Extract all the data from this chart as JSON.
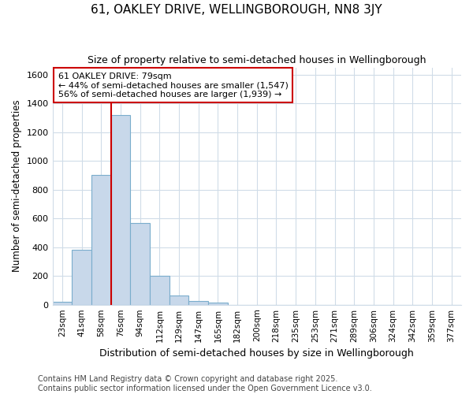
{
  "title": "61, OAKLEY DRIVE, WELLINGBOROUGH, NN8 3JY",
  "subtitle": "Size of property relative to semi-detached houses in Wellingborough",
  "xlabel": "Distribution of semi-detached houses by size in Wellingborough",
  "ylabel": "Number of semi-detached properties",
  "categories": [
    "23sqm",
    "41sqm",
    "58sqm",
    "76sqm",
    "94sqm",
    "112sqm",
    "129sqm",
    "147sqm",
    "165sqm",
    "182sqm",
    "200sqm",
    "218sqm",
    "235sqm",
    "253sqm",
    "271sqm",
    "289sqm",
    "306sqm",
    "324sqm",
    "342sqm",
    "359sqm",
    "377sqm"
  ],
  "values": [
    18,
    380,
    900,
    1320,
    570,
    200,
    65,
    28,
    14,
    0,
    0,
    0,
    0,
    0,
    0,
    0,
    0,
    0,
    0,
    0,
    0
  ],
  "bar_color": "#c8d8ea",
  "bar_edge_color": "#7aadcc",
  "vline_x_index": 3,
  "vline_color": "#cc0000",
  "annotation_text": "61 OAKLEY DRIVE: 79sqm\n← 44% of semi-detached houses are smaller (1,547)\n56% of semi-detached houses are larger (1,939) →",
  "annotation_box_color": "#ffffff",
  "annotation_box_edge": "#cc0000",
  "ylim": [
    0,
    1650
  ],
  "yticks": [
    0,
    200,
    400,
    600,
    800,
    1000,
    1200,
    1400,
    1600
  ],
  "plot_bg_color": "#ffffff",
  "fig_bg_color": "#ffffff",
  "grid_color": "#d0dce8",
  "footer": "Contains HM Land Registry data © Crown copyright and database right 2025.\nContains public sector information licensed under the Open Government Licence v3.0.",
  "title_fontsize": 11,
  "subtitle_fontsize": 9,
  "annotation_fontsize": 8,
  "footer_fontsize": 7
}
